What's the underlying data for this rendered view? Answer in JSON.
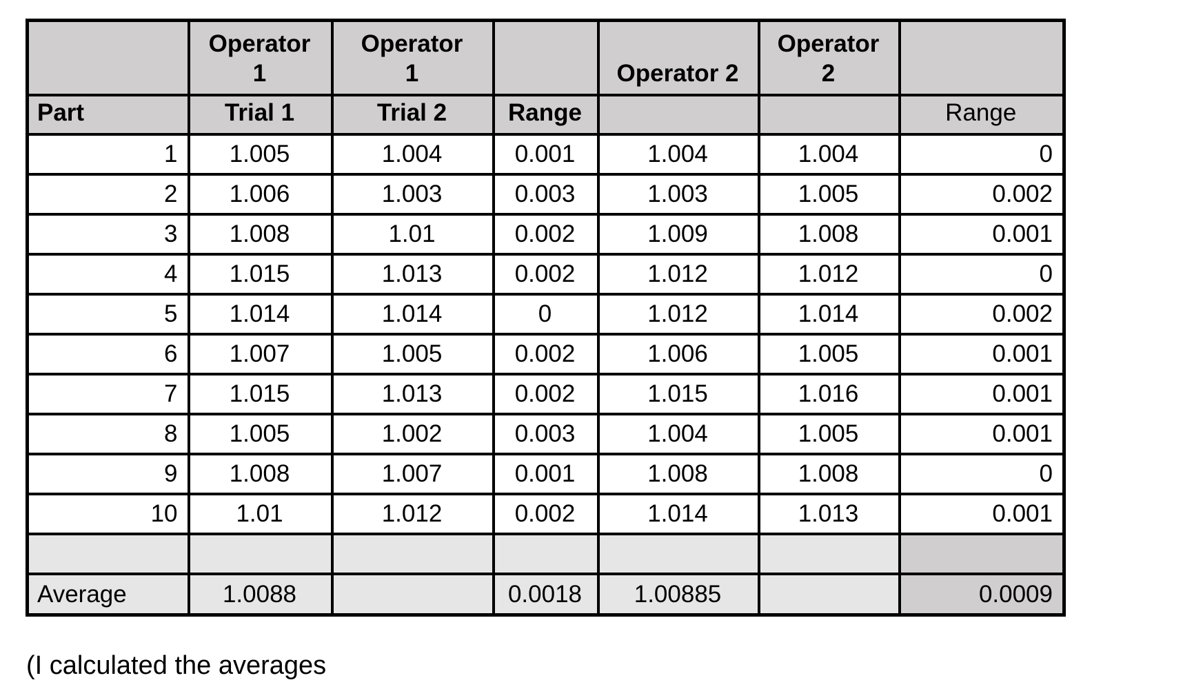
{
  "note": "(I calculated the averages",
  "colors": {
    "header_fill": "#d0cece",
    "summary_fill": "#e7e6e6",
    "summary_range_fill": "#d0cece",
    "border": "#000000",
    "background": "#ffffff"
  },
  "table": {
    "header_row1": [
      "",
      "Operator\n1",
      "Operator\n1",
      "",
      "Operator 2",
      "Operator\n2",
      ""
    ],
    "header_row2": [
      "Part",
      "Trial 1",
      "Trial 2",
      "Range",
      "",
      "",
      "Range"
    ],
    "rows": [
      [
        "1",
        "1.005",
        "1.004",
        "0.001",
        "1.004",
        "1.004",
        "0"
      ],
      [
        "2",
        "1.006",
        "1.003",
        "0.003",
        "1.003",
        "1.005",
        "0.002"
      ],
      [
        "3",
        "1.008",
        "1.01",
        "0.002",
        "1.009",
        "1.008",
        "0.001"
      ],
      [
        "4",
        "1.015",
        "1.013",
        "0.002",
        "1.012",
        "1.012",
        "0"
      ],
      [
        "5",
        "1.014",
        "1.014",
        "0",
        "1.012",
        "1.014",
        "0.002"
      ],
      [
        "6",
        "1.007",
        "1.005",
        "0.002",
        "1.006",
        "1.005",
        "0.001"
      ],
      [
        "7",
        "1.015",
        "1.013",
        "0.002",
        "1.015",
        "1.016",
        "0.001"
      ],
      [
        "8",
        "1.005",
        "1.002",
        "0.003",
        "1.004",
        "1.005",
        "0.001"
      ],
      [
        "9",
        "1.008",
        "1.007",
        "0.001",
        "1.008",
        "1.008",
        "0"
      ],
      [
        "10",
        "1.01",
        "1.012",
        "0.002",
        "1.014",
        "1.013",
        "0.001"
      ]
    ],
    "spacer_row": [
      "",
      "",
      "",
      "",
      "",
      "",
      ""
    ],
    "average_row": [
      "Average",
      "1.0088",
      "",
      "0.0018",
      "1.00885",
      "",
      "0.0009"
    ]
  }
}
